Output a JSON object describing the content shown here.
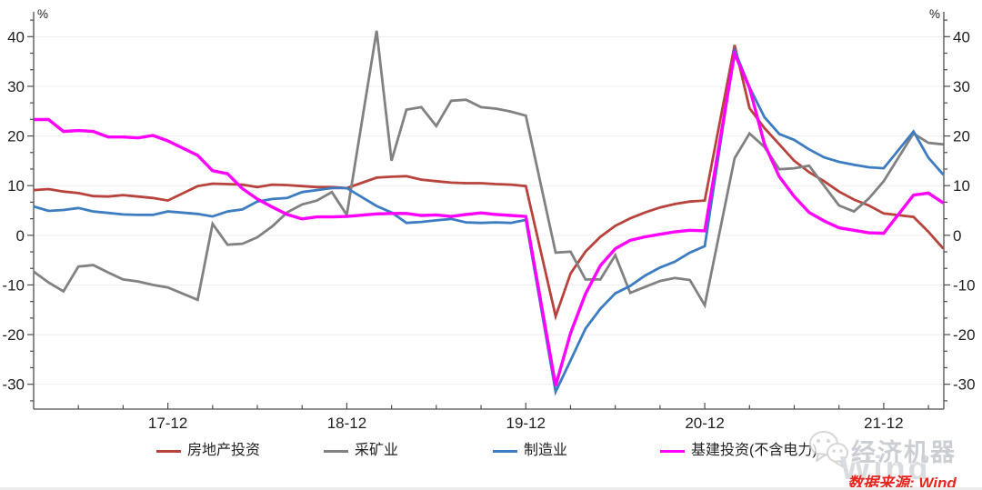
{
  "chart": {
    "unit_left": "%",
    "unit_right": "%",
    "source_note": "数据来源: Wind",
    "watermark_name": "经济机器",
    "watermark_brand": "Wind"
  },
  "chart_data": {
    "type": "line",
    "title": "",
    "xlabel": "",
    "ylabel": "%",
    "grid": true,
    "legend_position": "bottom",
    "ylim": [
      -35,
      45
    ],
    "yticks": [
      -30,
      -20,
      -10,
      0,
      10,
      20,
      30,
      40
    ],
    "x_major_ticks": [
      "17-12",
      "18-12",
      "19-12",
      "20-12",
      "21-12"
    ],
    "x_minor_tick_months": [
      3,
      6,
      9
    ],
    "x": [
      "17-03",
      "17-04",
      "17-05",
      "17-06",
      "17-07",
      "17-08",
      "17-09",
      "17-10",
      "17-11",
      "17-12",
      "18-02",
      "18-03",
      "18-04",
      "18-05",
      "18-06",
      "18-07",
      "18-08",
      "18-09",
      "18-10",
      "18-11",
      "18-12",
      "19-02",
      "19-03",
      "19-04",
      "19-05",
      "19-06",
      "19-07",
      "19-08",
      "19-09",
      "19-10",
      "19-11",
      "19-12",
      "20-02",
      "20-03",
      "20-04",
      "20-05",
      "20-06",
      "20-07",
      "20-08",
      "20-09",
      "20-10",
      "20-11",
      "20-12",
      "21-02",
      "21-03",
      "21-04",
      "21-05",
      "21-06",
      "21-07",
      "21-08",
      "21-09",
      "21-10",
      "21-11",
      "21-12",
      "22-02",
      "22-03",
      "22-04"
    ],
    "series": [
      {
        "name": "房地产投资",
        "color": "#b8423c",
        "values": [
          9.1,
          9.3,
          8.8,
          8.5,
          7.9,
          7.8,
          8.1,
          7.8,
          7.5,
          7.0,
          9.9,
          10.4,
          10.3,
          10.2,
          9.7,
          10.2,
          10.1,
          9.9,
          9.7,
          9.7,
          9.5,
          11.6,
          11.8,
          11.9,
          11.2,
          10.9,
          10.6,
          10.5,
          10.5,
          10.3,
          10.2,
          9.9,
          -16.3,
          -7.7,
          -3.3,
          -0.3,
          1.9,
          3.4,
          4.6,
          5.6,
          6.3,
          6.8,
          7.0,
          38.3,
          25.6,
          21.6,
          18.3,
          15.0,
          12.7,
          10.9,
          8.8,
          7.2,
          6.0,
          4.4,
          3.7,
          0.7,
          -2.7
        ]
      },
      {
        "name": "采矿业",
        "color": "#818181",
        "values": [
          -7.3,
          -9.5,
          -11.3,
          -6.3,
          -6.0,
          -7.5,
          -8.9,
          -9.3,
          -10.0,
          -10.5,
          -13.0,
          2.3,
          -1.9,
          -1.7,
          -0.4,
          1.8,
          4.6,
          6.2,
          7.0,
          8.7,
          4.1,
          41.2,
          15.0,
          25.3,
          25.8,
          22.0,
          27.1,
          27.3,
          25.8,
          25.5,
          24.9,
          24.1,
          -3.5,
          -3.3,
          -8.9,
          -8.9,
          -4.0,
          -11.6,
          -10.4,
          -9.2,
          -8.6,
          -9.0,
          -14.1,
          15.5,
          20.5,
          17.8,
          13.3,
          13.5,
          14.0,
          10.0,
          6.0,
          4.8,
          7.4,
          10.9,
          20.5,
          18.6,
          18.3
        ]
      },
      {
        "name": "制造业",
        "color": "#3d7cc0",
        "values": [
          5.8,
          4.9,
          5.1,
          5.5,
          4.8,
          4.5,
          4.2,
          4.1,
          4.1,
          4.8,
          4.3,
          3.8,
          4.8,
          5.2,
          6.8,
          7.3,
          7.5,
          8.7,
          9.1,
          9.5,
          9.5,
          5.9,
          4.6,
          2.5,
          2.7,
          3.0,
          3.3,
          2.6,
          2.5,
          2.6,
          2.5,
          3.1,
          -31.5,
          -25.2,
          -18.8,
          -14.8,
          -11.7,
          -10.2,
          -8.1,
          -6.5,
          -5.3,
          -3.5,
          -2.2,
          37.3,
          29.8,
          23.8,
          20.4,
          19.2,
          17.3,
          15.7,
          14.8,
          14.2,
          13.7,
          13.5,
          20.9,
          15.6,
          12.2
        ]
      },
      {
        "name": "基建投资(不含电力)",
        "color": "#ff00ff",
        "values": [
          23.3,
          23.3,
          20.9,
          21.1,
          20.9,
          19.8,
          19.8,
          19.6,
          20.1,
          19.0,
          16.1,
          13.0,
          12.4,
          9.4,
          7.3,
          5.7,
          4.2,
          3.3,
          3.7,
          3.7,
          3.8,
          4.3,
          4.4,
          4.4,
          4.0,
          4.1,
          3.8,
          4.2,
          4.5,
          4.2,
          4.0,
          3.8,
          -30.3,
          -19.7,
          -11.8,
          -6.1,
          -2.7,
          -1.0,
          -0.3,
          0.2,
          0.7,
          1.0,
          0.9,
          36.6,
          29.7,
          18.4,
          11.8,
          7.8,
          4.6,
          2.9,
          1.5,
          1.0,
          0.5,
          0.4,
          8.1,
          8.5,
          6.5
        ]
      }
    ]
  }
}
